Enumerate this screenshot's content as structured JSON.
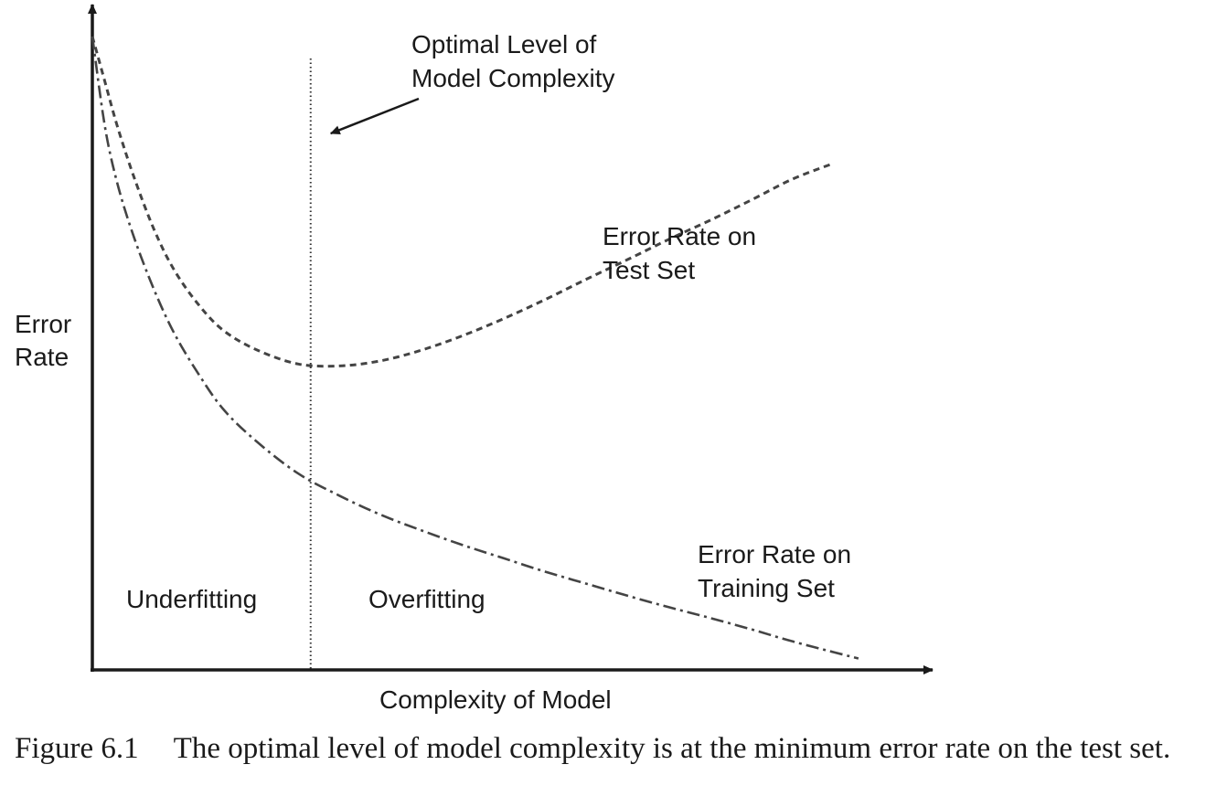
{
  "chart_data": {
    "type": "line",
    "title": "",
    "xlabel": "Complexity of Model",
    "ylabel": [
      "Error",
      "Rate"
    ],
    "xlim": [
      0,
      10
    ],
    "ylim": [
      0,
      10
    ],
    "grid": false,
    "axes_arrows": true,
    "series": [
      {
        "key": "test",
        "style": "dashed",
        "color": "#444444",
        "x": [
          0,
          0.15,
          0.3,
          0.5,
          0.75,
          1.0,
          1.3,
          1.6,
          2.0,
          2.5,
          3.0,
          3.5,
          4.0,
          4.5,
          5.0,
          5.5,
          6.0,
          6.5,
          7.0,
          7.5,
          8.0,
          8.5,
          9.0
        ],
        "y": [
          10.0,
          9.3,
          8.6,
          7.8,
          6.95,
          6.3,
          5.75,
          5.35,
          5.05,
          4.83,
          4.8,
          4.88,
          5.05,
          5.28,
          5.55,
          5.85,
          6.17,
          6.48,
          6.8,
          7.1,
          7.42,
          7.75,
          8.0
        ]
      },
      {
        "key": "training",
        "style": "dashdot",
        "color": "#444444",
        "x": [
          0,
          0.15,
          0.3,
          0.5,
          0.75,
          1.0,
          1.3,
          1.6,
          2.0,
          2.5,
          3.0,
          3.5,
          4.0,
          4.5,
          5.0,
          5.5,
          6.0,
          6.5,
          7.0,
          7.5,
          8.0,
          8.5,
          9.0,
          9.3
        ],
        "y": [
          10.0,
          8.6,
          7.7,
          6.85,
          6.0,
          5.3,
          4.65,
          4.1,
          3.6,
          3.1,
          2.75,
          2.45,
          2.2,
          1.97,
          1.76,
          1.55,
          1.36,
          1.17,
          0.99,
          0.82,
          0.64,
          0.45,
          0.28,
          0.18
        ]
      }
    ],
    "annotations": {
      "optimal": {
        "x": 2.65,
        "lines": [
          "Optimal Level of",
          "Model Complexity"
        ],
        "line_style": "dotted"
      },
      "test_label": [
        "Error Rate on",
        "Test Set"
      ],
      "training_label": [
        "Error Rate on",
        "Training Set"
      ],
      "region_left": "Underfitting",
      "region_right": "Overfitting"
    }
  },
  "caption": {
    "number": "Figure 6.1",
    "text": "The optimal level of model complexity is at the minimum error rate on the test set."
  }
}
